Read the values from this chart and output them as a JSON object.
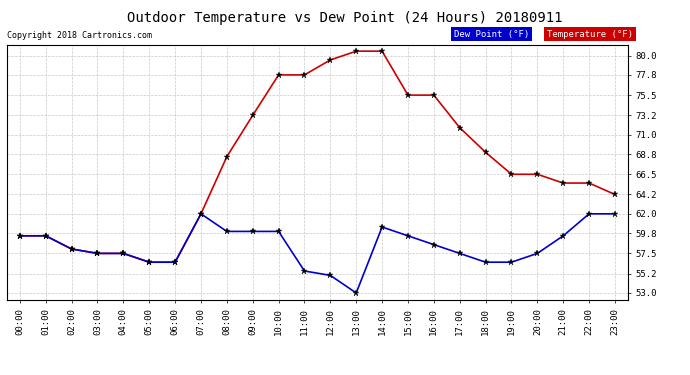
{
  "title": "Outdoor Temperature vs Dew Point (24 Hours) 20180911",
  "copyright": "Copyright 2018 Cartronics.com",
  "hours": [
    "00:00",
    "01:00",
    "02:00",
    "03:00",
    "04:00",
    "05:00",
    "06:00",
    "07:00",
    "08:00",
    "09:00",
    "10:00",
    "11:00",
    "12:00",
    "13:00",
    "14:00",
    "15:00",
    "16:00",
    "17:00",
    "18:00",
    "19:00",
    "20:00",
    "21:00",
    "22:00",
    "23:00"
  ],
  "temperature": [
    59.5,
    59.5,
    58.0,
    57.5,
    57.5,
    56.5,
    56.5,
    62.0,
    68.5,
    73.2,
    77.8,
    77.8,
    79.5,
    80.5,
    80.5,
    75.5,
    75.5,
    71.8,
    69.0,
    66.5,
    66.5,
    65.5,
    65.5,
    64.2
  ],
  "dew_point": [
    59.5,
    59.5,
    58.0,
    57.5,
    57.5,
    56.5,
    56.5,
    62.0,
    60.0,
    60.0,
    60.0,
    55.5,
    55.0,
    53.0,
    60.5,
    59.5,
    58.5,
    57.5,
    56.5,
    56.5,
    57.5,
    59.5,
    62.0,
    62.0
  ],
  "temp_color": "#cc0000",
  "dew_color": "#0000cc",
  "yticks": [
    53.0,
    55.2,
    57.5,
    59.8,
    62.0,
    64.2,
    66.5,
    68.8,
    71.0,
    73.2,
    75.5,
    77.8,
    80.0
  ],
  "bg_color": "#ffffff",
  "grid_color": "#bbbbbb",
  "legend_dew_bg": "#0000cc",
  "legend_temp_bg": "#cc0000"
}
